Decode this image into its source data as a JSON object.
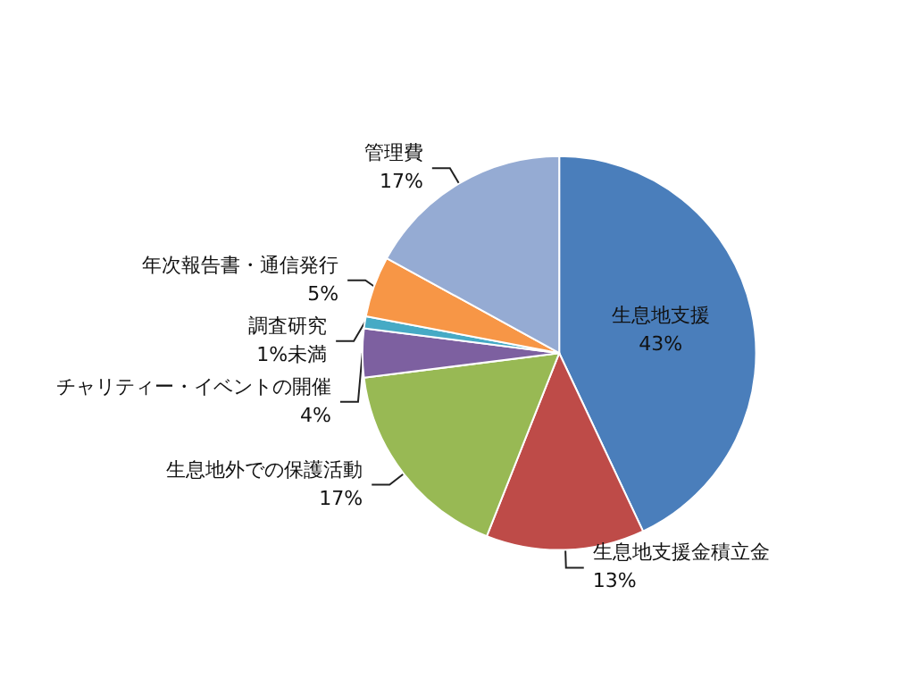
{
  "chart_data": {
    "type": "pie",
    "categories": [
      "生息地支援",
      "生息地支援金積立金",
      "生息地外での保護活動",
      "チャリティー・イベントの開催",
      "調査研究",
      "年次報告書・通信発行",
      "管理費"
    ],
    "values": [
      43,
      13,
      17,
      4,
      1,
      5,
      17
    ],
    "value_labels": [
      "43%",
      "13%",
      "17%",
      "4%",
      "1%未満",
      "5%",
      "17%"
    ],
    "colors": [
      "#4a7ebb",
      "#be4b48",
      "#98b954",
      "#7d60a0",
      "#46aac5",
      "#f79646",
      "#95abd3"
    ]
  }
}
